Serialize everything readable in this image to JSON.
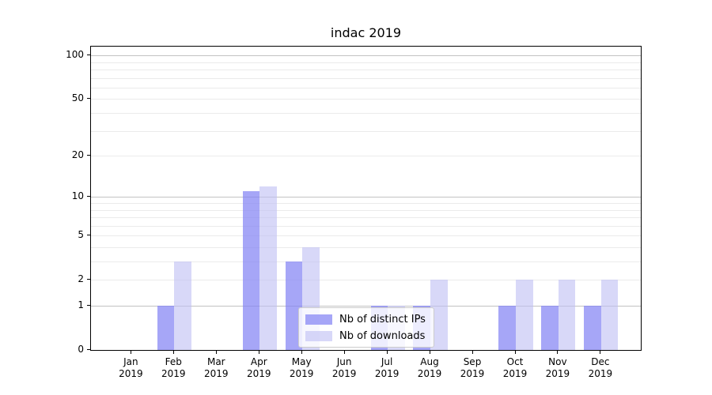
{
  "title": "indac 2019",
  "chart_data": {
    "type": "bar",
    "title": "indac 2019",
    "categories": [
      "Jan 2019",
      "Feb 2019",
      "Mar 2019",
      "Apr 2019",
      "May 2019",
      "Jun 2019",
      "Jul 2019",
      "Aug 2019",
      "Sep 2019",
      "Oct 2019",
      "Nov 2019",
      "Dec 2019"
    ],
    "series": [
      {
        "name": "Nb of distinct IPs",
        "color": "rgba(132,132,244,0.72)",
        "values": [
          0,
          1,
          0,
          11,
          3,
          0,
          1,
          1,
          0,
          1,
          1,
          1
        ]
      },
      {
        "name": "Nb of downloads",
        "color": "rgba(190,190,243,0.6)",
        "values": [
          0,
          3,
          0,
          12,
          4,
          0,
          1,
          2,
          0,
          2,
          2,
          2
        ]
      }
    ],
    "xlabel": "",
    "ylabel": "",
    "yscale": "log1p",
    "ylim": [
      0,
      115
    ],
    "y_ticks": [
      0,
      1,
      2,
      5,
      10,
      20,
      50,
      100
    ],
    "y_gridlines_major": [
      1,
      10,
      100
    ],
    "y_gridlines_minor": [
      2,
      3,
      4,
      5,
      6,
      7,
      8,
      9,
      20,
      30,
      40,
      50,
      60,
      70,
      80,
      90
    ],
    "grid": true,
    "legend_position": "lower center",
    "colors": {
      "grid_major": "#c2c2c2",
      "grid_minor": "#ebebeb",
      "axis": "#000000"
    }
  }
}
